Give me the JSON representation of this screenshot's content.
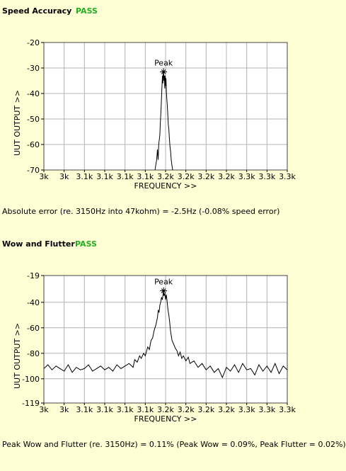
{
  "sections": [
    {
      "title": "Speed Accuracy",
      "status": "PASS",
      "status_color": "#22B022",
      "result": "Absolute error (re. 3150Hz into 47kohm) = -2.5Hz (-0.08% speed error)",
      "chart_data": {
        "type": "line",
        "title": "",
        "xlabel": "FREQUENCY >>",
        "ylabel": "UUT OUTPUT >>",
        "x_tick_labels": [
          "3k",
          "3k",
          "3.1k",
          "3.1k",
          "3.1k",
          "3.1k",
          "3.2k",
          "3.2k",
          "3.2k",
          "3.2k",
          "3.3k",
          "3.3k",
          "3.3k"
        ],
        "y_tick_labels": [
          "-20",
          "-30",
          "-40",
          "-50",
          "-60",
          "-70"
        ],
        "y_ticks": [
          -20,
          -30,
          -40,
          -50,
          -60,
          -70
        ],
        "ylim": [
          -70,
          -20
        ],
        "xlim": [
          3000,
          3300
        ],
        "grid": true,
        "annotation": "Peak",
        "peak": {
          "x": 3147.5,
          "y": -31.5
        },
        "series": [
          {
            "values": [
              [
                3137,
                -70
              ],
              [
                3138,
                -68
              ],
              [
                3139,
                -66
              ],
              [
                3140,
                -62
              ],
              [
                3140.8,
                -66
              ],
              [
                3141.5,
                -60
              ],
              [
                3142.3,
                -58
              ],
              [
                3143,
                -56
              ],
              [
                3143.5,
                -52
              ],
              [
                3144,
                -49
              ],
              [
                3144.6,
                -45
              ],
              [
                3145.2,
                -40
              ],
              [
                3145.7,
                -36
              ],
              [
                3146.2,
                -33
              ],
              [
                3146.7,
                -36
              ],
              [
                3147,
                -32
              ],
              [
                3147.5,
                -31.5
              ],
              [
                3148,
                -35
              ],
              [
                3148.5,
                -33
              ],
              [
                3149,
                -38
              ],
              [
                3149.5,
                -33
              ],
              [
                3150,
                -37
              ],
              [
                3150.5,
                -34
              ],
              [
                3151,
                -39
              ],
              [
                3151.5,
                -42
              ],
              [
                3152,
                -44
              ],
              [
                3152.7,
                -48
              ],
              [
                3153.3,
                -52
              ],
              [
                3154,
                -54
              ],
              [
                3154.8,
                -58
              ],
              [
                3155.5,
                -61
              ],
              [
                3156.3,
                -63
              ],
              [
                3157,
                -66
              ],
              [
                3157.8,
                -68
              ],
              [
                3158.7,
                -70
              ]
            ]
          }
        ]
      }
    },
    {
      "title": "Wow and Flutter",
      "status": "PASS",
      "status_color": "#22B022",
      "result": "Peak Wow and Flutter (re. 3150Hz) = 0.11% (Peak Wow = 0.09%, Peak Flutter = 0.02%)",
      "chart_data": {
        "type": "line",
        "title": "",
        "xlabel": "FREQUENCY >>",
        "ylabel": "UUT OUTPUT >>",
        "x_tick_labels": [
          "3k",
          "3k",
          "3.1k",
          "3.1k",
          "3.1k",
          "3.1k",
          "3.2k",
          "3.2k",
          "3.2k",
          "3.2k",
          "3.3k",
          "3.3k",
          "3.3k"
        ],
        "y_tick_labels": [
          "-19",
          "-40",
          "-60",
          "-80",
          "-100",
          "-119"
        ],
        "y_ticks": [
          -19,
          -40,
          -60,
          -80,
          -100,
          -119
        ],
        "ylim": [
          -119,
          -19
        ],
        "xlim": [
          3000,
          3300
        ],
        "grid": true,
        "annotation": "Peak",
        "peak": {
          "x": 3147.5,
          "y": -31
        },
        "series": [
          {
            "values": [
              [
                3000,
                -92
              ],
              [
                3005,
                -89
              ],
              [
                3010,
                -93
              ],
              [
                3015,
                -90
              ],
              [
                3020,
                -92
              ],
              [
                3025,
                -94
              ],
              [
                3030,
                -89
              ],
              [
                3035,
                -95
              ],
              [
                3040,
                -91
              ],
              [
                3045,
                -93
              ],
              [
                3050,
                -92
              ],
              [
                3055,
                -89
              ],
              [
                3060,
                -94
              ],
              [
                3065,
                -92
              ],
              [
                3070,
                -90
              ],
              [
                3075,
                -93
              ],
              [
                3080,
                -91
              ],
              [
                3085,
                -94
              ],
              [
                3090,
                -89
              ],
              [
                3095,
                -92
              ],
              [
                3100,
                -90
              ],
              [
                3105,
                -88
              ],
              [
                3110,
                -91
              ],
              [
                3112,
                -85
              ],
              [
                3115,
                -87
              ],
              [
                3118,
                -82
              ],
              [
                3120,
                -84
              ],
              [
                3123,
                -80
              ],
              [
                3125,
                -82
              ],
              [
                3128,
                -75
              ],
              [
                3130,
                -77
              ],
              [
                3132,
                -70
              ],
              [
                3134,
                -68
              ],
              [
                3136,
                -62
              ],
              [
                3138,
                -58
              ],
              [
                3140,
                -52
              ],
              [
                3141,
                -46
              ],
              [
                3142,
                -48
              ],
              [
                3143,
                -42
              ],
              [
                3144,
                -40
              ],
              [
                3145,
                -36
              ],
              [
                3146,
                -38
              ],
              [
                3147,
                -33
              ],
              [
                3147.5,
                -31
              ],
              [
                3148,
                -35
              ],
              [
                3149,
                -33
              ],
              [
                3150,
                -38
              ],
              [
                3151,
                -34
              ],
              [
                3152,
                -40
              ],
              [
                3153,
                -46
              ],
              [
                3154,
                -50
              ],
              [
                3155,
                -55
              ],
              [
                3156,
                -62
              ],
              [
                3157,
                -66
              ],
              [
                3158,
                -70
              ],
              [
                3160,
                -73
              ],
              [
                3162,
                -76
              ],
              [
                3164,
                -78
              ],
              [
                3166,
                -82
              ],
              [
                3168,
                -79
              ],
              [
                3170,
                -84
              ],
              [
                3172,
                -82
              ],
              [
                3175,
                -86
              ],
              [
                3178,
                -83
              ],
              [
                3180,
                -88
              ],
              [
                3185,
                -86
              ],
              [
                3190,
                -91
              ],
              [
                3195,
                -88
              ],
              [
                3200,
                -93
              ],
              [
                3205,
                -90
              ],
              [
                3210,
                -95
              ],
              [
                3215,
                -92
              ],
              [
                3220,
                -99
              ],
              [
                3225,
                -91
              ],
              [
                3230,
                -94
              ],
              [
                3235,
                -89
              ],
              [
                3240,
                -95
              ],
              [
                3245,
                -88
              ],
              [
                3250,
                -93
              ],
              [
                3255,
                -92
              ],
              [
                3260,
                -97
              ],
              [
                3265,
                -89
              ],
              [
                3270,
                -94
              ],
              [
                3275,
                -90
              ],
              [
                3280,
                -95
              ],
              [
                3285,
                -88
              ],
              [
                3290,
                -96
              ],
              [
                3295,
                -90
              ],
              [
                3300,
                -93
              ]
            ]
          }
        ]
      }
    }
  ]
}
